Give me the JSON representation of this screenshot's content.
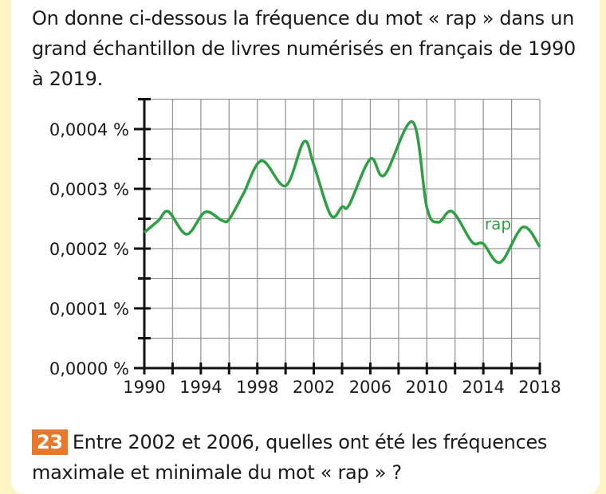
{
  "intro_text": "On donne ci-dessous la fréquence du mot « rap » dans un grand échantillon de livres numérisés en français de 1990 à 2019.",
  "question": {
    "number": "23",
    "text": "Entre 2002 et 2006, quelles ont été les fréquences maximale et minimale du mot « rap » ?"
  },
  "colors": {
    "series": "#2ea043",
    "badge": "#e8792a",
    "frame": "#fdf6c4"
  },
  "chart_data": {
    "type": "line",
    "title": "",
    "xlabel": "",
    "ylabel": "",
    "xlim": [
      1990,
      2018
    ],
    "ylim": [
      0,
      0.00045
    ],
    "grid": true,
    "x_ticks": [
      1990,
      1994,
      1998,
      2002,
      2006,
      2010,
      2014,
      2018
    ],
    "x_tick_labels": [
      "1990",
      "1994",
      "1998",
      "2002",
      "2006",
      "2010",
      "2014",
      "2018"
    ],
    "y_ticks": [
      0,
      0.0001,
      0.0002,
      0.0003,
      0.0004
    ],
    "y_tick_labels": [
      "0,0000 %",
      "0,0001 %",
      "0,0002 %",
      "0,0003 %",
      "0,0004 %"
    ],
    "series": [
      {
        "name": "rap",
        "x": [
          1990,
          1991,
          1991.7,
          1993,
          1994.3,
          1995.5,
          1996,
          1997,
          1998.3,
          2000,
          2001.3,
          2002,
          2003.2,
          2004,
          2004.5,
          2006,
          2007,
          2009,
          2010,
          2010.8,
          2011.8,
          2013.2,
          2014,
          2015.2,
          2016.8,
          2018
        ],
        "values": [
          0.000227,
          0.000247,
          0.000262,
          0.000224,
          0.000261,
          0.000247,
          0.000249,
          0.000291,
          0.000347,
          0.000305,
          0.000379,
          0.00034,
          0.000256,
          0.00027,
          0.000273,
          0.00035,
          0.000323,
          0.000412,
          0.000269,
          0.000244,
          0.000262,
          0.000211,
          0.000208,
          0.000177,
          0.000236,
          0.000203
        ]
      }
    ]
  }
}
